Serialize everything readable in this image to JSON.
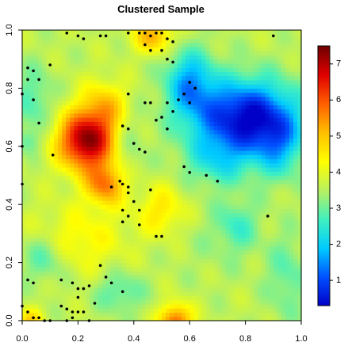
{
  "chart_data": {
    "type": "heatmap",
    "title": "Clustered Sample",
    "xlabel": "",
    "ylabel": "",
    "xlim": [
      0,
      1
    ],
    "ylim": [
      0,
      1
    ],
    "x_ticks": [
      {
        "value": 0,
        "label": "0.0"
      },
      {
        "value": 0.2,
        "label": "0.2"
      },
      {
        "value": 0.4,
        "label": "0.4"
      },
      {
        "value": 0.6,
        "label": "0.6"
      },
      {
        "value": 0.8,
        "label": "0.8"
      },
      {
        "value": 1.0,
        "label": "1.0"
      }
    ],
    "y_ticks": [
      {
        "value": 0,
        "label": "0.0"
      },
      {
        "value": 0.2,
        "label": "0.2"
      },
      {
        "value": 0.4,
        "label": "0.4"
      },
      {
        "value": 0.6,
        "label": "0.6"
      },
      {
        "value": 0.8,
        "label": "0.8"
      },
      {
        "value": 1.0,
        "label": "1.0"
      }
    ],
    "colorbar": {
      "range": [
        0.3,
        7.5
      ],
      "ticks": [
        {
          "value": 1,
          "label": "1"
        },
        {
          "value": 2,
          "label": "2"
        },
        {
          "value": 3,
          "label": "3"
        },
        {
          "value": 4,
          "label": "4"
        },
        {
          "value": 5,
          "label": "5"
        },
        {
          "value": 6,
          "label": "6"
        },
        {
          "value": 7,
          "label": "7"
        }
      ],
      "colors": [
        "#0000c8",
        "#0050ff",
        "#00ccff",
        "#40f0c0",
        "#b8f060",
        "#ffff00",
        "#ffc000",
        "#ff6000",
        "#e00000",
        "#700000"
      ]
    },
    "field_base": 3.6,
    "field_bumps": [
      {
        "x": 0.23,
        "y": 0.62,
        "sigma_x": 0.07,
        "sigma_y": 0.07,
        "amp": 3.7
      },
      {
        "x": 0.3,
        "y": 0.47,
        "sigma_x": 0.05,
        "sigma_y": 0.05,
        "amp": 2.0
      },
      {
        "x": 0.3,
        "y": 0.74,
        "sigma_x": 0.06,
        "sigma_y": 0.06,
        "amp": 1.3
      },
      {
        "x": 0.47,
        "y": 0.98,
        "sigma_x": 0.05,
        "sigma_y": 0.04,
        "amp": 1.6
      },
      {
        "x": 0.55,
        "y": 0.0,
        "sigma_x": 0.04,
        "sigma_y": 0.04,
        "amp": 2.3
      },
      {
        "x": 0.5,
        "y": 0.38,
        "sigma_x": 0.06,
        "sigma_y": 0.06,
        "amp": 1.0
      },
      {
        "x": 0.2,
        "y": 0.28,
        "sigma_x": 0.12,
        "sigma_y": 0.08,
        "amp": 0.8
      },
      {
        "x": 0.03,
        "y": 0.0,
        "sigma_x": 0.03,
        "sigma_y": 0.03,
        "amp": 1.2
      },
      {
        "x": 0.8,
        "y": 0.7,
        "sigma_x": 0.13,
        "sigma_y": 0.09,
        "amp": -3.3
      },
      {
        "x": 0.6,
        "y": 0.82,
        "sigma_x": 0.06,
        "sigma_y": 0.08,
        "amp": -1.8
      },
      {
        "x": 0.92,
        "y": 0.6,
        "sigma_x": 0.06,
        "sigma_y": 0.08,
        "amp": -1.2
      },
      {
        "x": 0.7,
        "y": 0.55,
        "sigma_x": 0.08,
        "sigma_y": 0.06,
        "amp": -1.0
      },
      {
        "x": 0.04,
        "y": 0.76,
        "sigma_x": 0.05,
        "sigma_y": 0.08,
        "amp": -0.8
      },
      {
        "x": 0.02,
        "y": 0.62,
        "sigma_x": 0.03,
        "sigma_y": 0.03,
        "amp": -0.6
      },
      {
        "x": 0.08,
        "y": 0.22,
        "sigma_x": 0.06,
        "sigma_y": 0.06,
        "amp": -0.9
      },
      {
        "x": 0.35,
        "y": 0.1,
        "sigma_x": 0.06,
        "sigma_y": 0.05,
        "amp": -0.8
      },
      {
        "x": 0.7,
        "y": 0.28,
        "sigma_x": 0.12,
        "sigma_y": 0.1,
        "amp": -0.2
      },
      {
        "x": 0.77,
        "y": 0.33,
        "sigma_x": 0.05,
        "sigma_y": 0.06,
        "amp": -0.8
      },
      {
        "x": 0.95,
        "y": 0.15,
        "sigma_x": 0.05,
        "sigma_y": 0.1,
        "amp": -0.7
      },
      {
        "x": 0.38,
        "y": 0.62,
        "sigma_x": 0.04,
        "sigma_y": 0.1,
        "amp": -0.5
      }
    ],
    "points": [
      [
        0.16,
        0.99
      ],
      [
        0.2,
        0.98
      ],
      [
        0.22,
        0.97
      ],
      [
        0.28,
        0.98
      ],
      [
        0.3,
        0.98
      ],
      [
        0.38,
        0.99
      ],
      [
        0.42,
        0.99
      ],
      [
        0.44,
        0.99
      ],
      [
        0.46,
        0.98
      ],
      [
        0.48,
        0.99
      ],
      [
        0.5,
        0.99
      ],
      [
        0.52,
        0.97
      ],
      [
        0.54,
        0.96
      ],
      [
        0.9,
        0.98
      ],
      [
        0.44,
        0.95
      ],
      [
        0.46,
        0.93
      ],
      [
        0.5,
        0.93
      ],
      [
        0.52,
        0.9
      ],
      [
        0.54,
        0.89
      ],
      [
        0.6,
        0.82
      ],
      [
        0.62,
        0.8
      ],
      [
        0.58,
        0.78
      ],
      [
        0.6,
        0.75
      ],
      [
        0.56,
        0.76
      ],
      [
        0.02,
        0.87
      ],
      [
        0.04,
        0.86
      ],
      [
        0.1,
        0.88
      ],
      [
        0.02,
        0.83
      ],
      [
        0.06,
        0.83
      ],
      [
        0.0,
        0.78
      ],
      [
        0.04,
        0.76
      ],
      [
        0.06,
        0.68
      ],
      [
        0.0,
        0.6
      ],
      [
        0.11,
        0.57
      ],
      [
        0.0,
        0.47
      ],
      [
        0.38,
        0.78
      ],
      [
        0.44,
        0.75
      ],
      [
        0.46,
        0.75
      ],
      [
        0.52,
        0.75
      ],
      [
        0.54,
        0.72
      ],
      [
        0.5,
        0.7
      ],
      [
        0.48,
        0.69
      ],
      [
        0.52,
        0.66
      ],
      [
        0.36,
        0.67
      ],
      [
        0.38,
        0.66
      ],
      [
        0.4,
        0.61
      ],
      [
        0.42,
        0.59
      ],
      [
        0.44,
        0.58
      ],
      [
        0.58,
        0.53
      ],
      [
        0.6,
        0.51
      ],
      [
        0.66,
        0.5
      ],
      [
        0.7,
        0.48
      ],
      [
        0.46,
        0.45
      ],
      [
        0.32,
        0.46
      ],
      [
        0.35,
        0.48
      ],
      [
        0.36,
        0.47
      ],
      [
        0.38,
        0.46
      ],
      [
        0.38,
        0.44
      ],
      [
        0.4,
        0.41
      ],
      [
        0.36,
        0.38
      ],
      [
        0.42,
        0.38
      ],
      [
        0.38,
        0.36
      ],
      [
        0.36,
        0.34
      ],
      [
        0.42,
        0.33
      ],
      [
        0.48,
        0.29
      ],
      [
        0.5,
        0.29
      ],
      [
        0.88,
        0.36
      ],
      [
        0.14,
        0.14
      ],
      [
        0.18,
        0.13
      ],
      [
        0.2,
        0.11
      ],
      [
        0.22,
        0.11
      ],
      [
        0.24,
        0.12
      ],
      [
        0.2,
        0.08
      ],
      [
        0.14,
        0.05
      ],
      [
        0.16,
        0.04
      ],
      [
        0.18,
        0.03
      ],
      [
        0.2,
        0.03
      ],
      [
        0.22,
        0.03
      ],
      [
        0.26,
        0.06
      ],
      [
        0.28,
        0.19
      ],
      [
        0.3,
        0.15
      ],
      [
        0.32,
        0.13
      ],
      [
        0.36,
        0.1
      ],
      [
        0.02,
        0.14
      ],
      [
        0.04,
        0.13
      ],
      [
        0.0,
        0.05
      ],
      [
        0.02,
        0.03
      ],
      [
        0.04,
        0.01
      ],
      [
        0.06,
        0.01
      ],
      [
        0.08,
        0.0
      ],
      [
        0.1,
        0.0
      ],
      [
        0.16,
        0.0
      ],
      [
        0.18,
        0.01
      ],
      [
        0.24,
        0.0
      ]
    ]
  }
}
